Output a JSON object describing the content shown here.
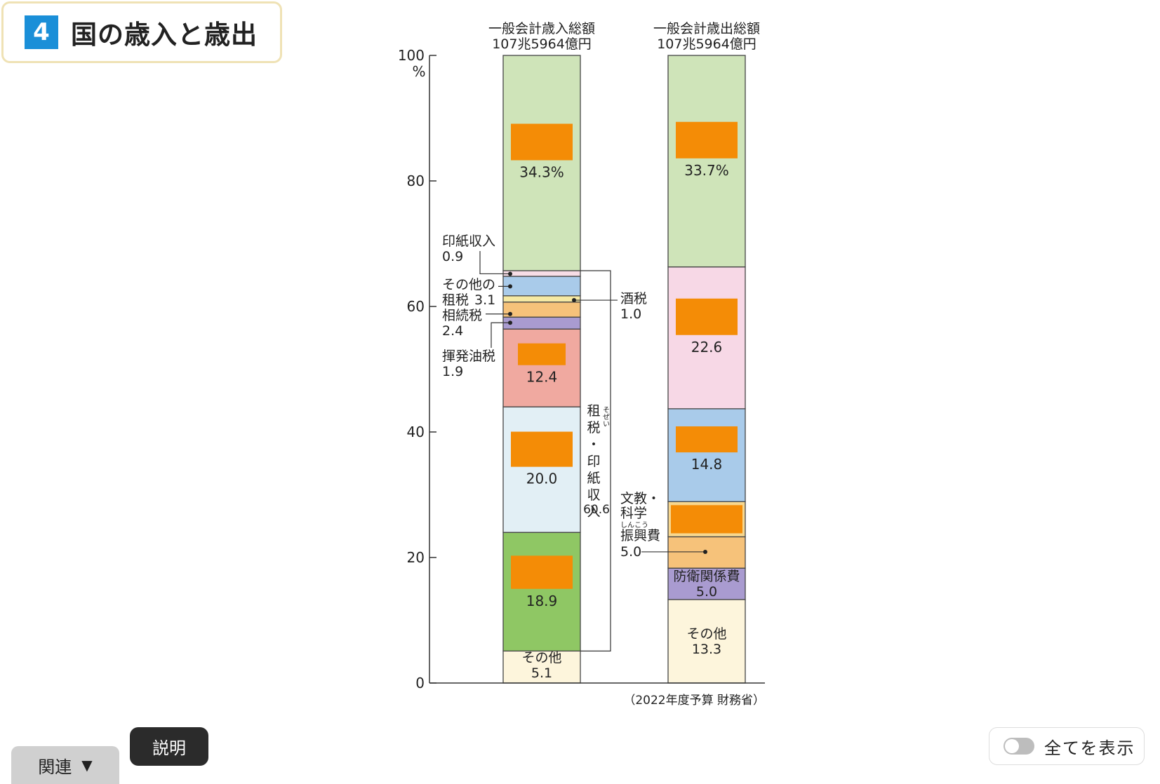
{
  "header": {
    "number": "4",
    "title": "国の歳入と歳出"
  },
  "chart_data": {
    "type": "bar",
    "stacked": true,
    "ylim": [
      0,
      100
    ],
    "y_ticks": [
      "0",
      "20",
      "40",
      "60",
      "80",
      "100"
    ],
    "y_unit": "%",
    "source": "（2022年度予算 財務省）",
    "columns": [
      {
        "key": "revenue",
        "header_line1": "一般会計歳入総額",
        "header_line2": "107兆5964億円",
        "segments": [
          {
            "value": 5.1,
            "label": "その他",
            "value_label": "5.1",
            "color": "#fdf5dc",
            "hidden": false
          },
          {
            "value": 18.9,
            "label": "",
            "value_label": "18.9",
            "color": "#8fc764",
            "hidden": true
          },
          {
            "value": 20.0,
            "label": "",
            "value_label": "20.0",
            "color": "#e2eff5",
            "hidden": true
          },
          {
            "value": 12.4,
            "label": "",
            "value_label": "12.4",
            "color": "#f0a9a0",
            "hidden": true
          },
          {
            "value": 1.9,
            "label": "揮発油税",
            "value_label": "1.9",
            "color": "#a99bd0",
            "hidden": false
          },
          {
            "value": 2.4,
            "label": "相続税",
            "value_label": "2.4",
            "color": "#f6c27a",
            "hidden": false
          },
          {
            "value": 1.0,
            "label": "酒税",
            "value_label": "1.0",
            "color": "#f6e9a3",
            "hidden": false
          },
          {
            "value": 3.1,
            "label": "その他の租税",
            "value_label": "3.1",
            "color": "#a9cbea",
            "hidden": false
          },
          {
            "value": 0.9,
            "label": "印紙収入",
            "value_label": "0.9",
            "color": "#f7dde6",
            "hidden": false
          },
          {
            "value": 34.3,
            "label": "",
            "value_label": "34.3%",
            "color": "#cfe4b9",
            "hidden": true
          }
        ],
        "bracket": {
          "label": "租税・印紙収入",
          "ruby": "そぜい",
          "value": "60.6"
        }
      },
      {
        "key": "expenditure",
        "header_line1": "一般会計歳出総額",
        "header_line2": "107兆5964億円",
        "segments": [
          {
            "value": 13.3,
            "label": "その他",
            "value_label": "13.3",
            "color": "#fdf5dc",
            "hidden": false
          },
          {
            "value": 5.0,
            "label": "防衛関係費",
            "value_label": "5.0",
            "color": "#a99bd0",
            "hidden": false
          },
          {
            "value": 5.0,
            "label": "文教・科学振興費",
            "ruby": "しんこう",
            "value_label": "5.0",
            "color": "#f6c27a",
            "hidden": false
          },
          {
            "value": 5.6,
            "label": "",
            "value_label": "",
            "color": "#f7d78f",
            "hidden": true
          },
          {
            "value": 14.8,
            "label": "",
            "value_label": "14.8",
            "color": "#a9cbea",
            "hidden": true
          },
          {
            "value": 22.6,
            "label": "",
            "value_label": "22.6",
            "color": "#f7d8e6",
            "hidden": true
          },
          {
            "value": 33.7,
            "label": "",
            "value_label": "33.7%",
            "color": "#cfe4b9",
            "hidden": true
          }
        ]
      }
    ],
    "annotations": {
      "stamp": {
        "label": "印紙収入",
        "value": "0.9"
      },
      "other_tax": {
        "label1": "その他の",
        "label2": "租税",
        "value": "3.1"
      },
      "inheritance": {
        "label": "相続税",
        "value": "2.4"
      },
      "gasoline": {
        "label": "揮発油税",
        "value": "1.9"
      },
      "liquor": {
        "label": "酒税",
        "value": "1.0"
      },
      "education": {
        "line1": "文教・",
        "line2": "科学",
        "ruby": "しんこう",
        "line3": "振興費",
        "value": "5.0"
      },
      "defense": {
        "label": "防衛関係費",
        "value": "5.0"
      },
      "rev_other": {
        "label": "その他",
        "value": "5.1"
      },
      "exp_other": {
        "label": "その他",
        "value": "13.3"
      }
    },
    "mask_color": "#f48c06"
  },
  "buttons": {
    "related": "関連",
    "related_icon": "▼",
    "explain": "説明",
    "show_all": "全てを表示"
  }
}
